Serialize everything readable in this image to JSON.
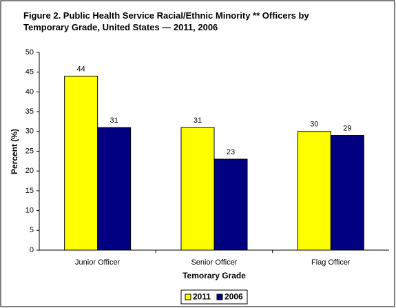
{
  "chart_data": {
    "type": "bar",
    "title": "Figure 2. Public Health Service Racial/Ethnic Minority ** Officers by Temporary Grade, United States — 2011, 2006",
    "x_label": "Temorary Grade",
    "y_label": "Percent (%)",
    "categories": [
      "Junior Officer",
      "Senior Officer",
      "Flag Officer"
    ],
    "series": [
      {
        "name": "2011",
        "color": "#ffff00",
        "values": [
          44,
          31,
          30
        ]
      },
      {
        "name": "2006",
        "color": "#000080",
        "values": [
          31,
          23,
          29
        ]
      }
    ],
    "ylim": [
      0,
      50
    ],
    "yticks": [
      0,
      5,
      10,
      15,
      20,
      25,
      30,
      35,
      40,
      45,
      50
    ],
    "grid": false,
    "legend": "bottom"
  }
}
